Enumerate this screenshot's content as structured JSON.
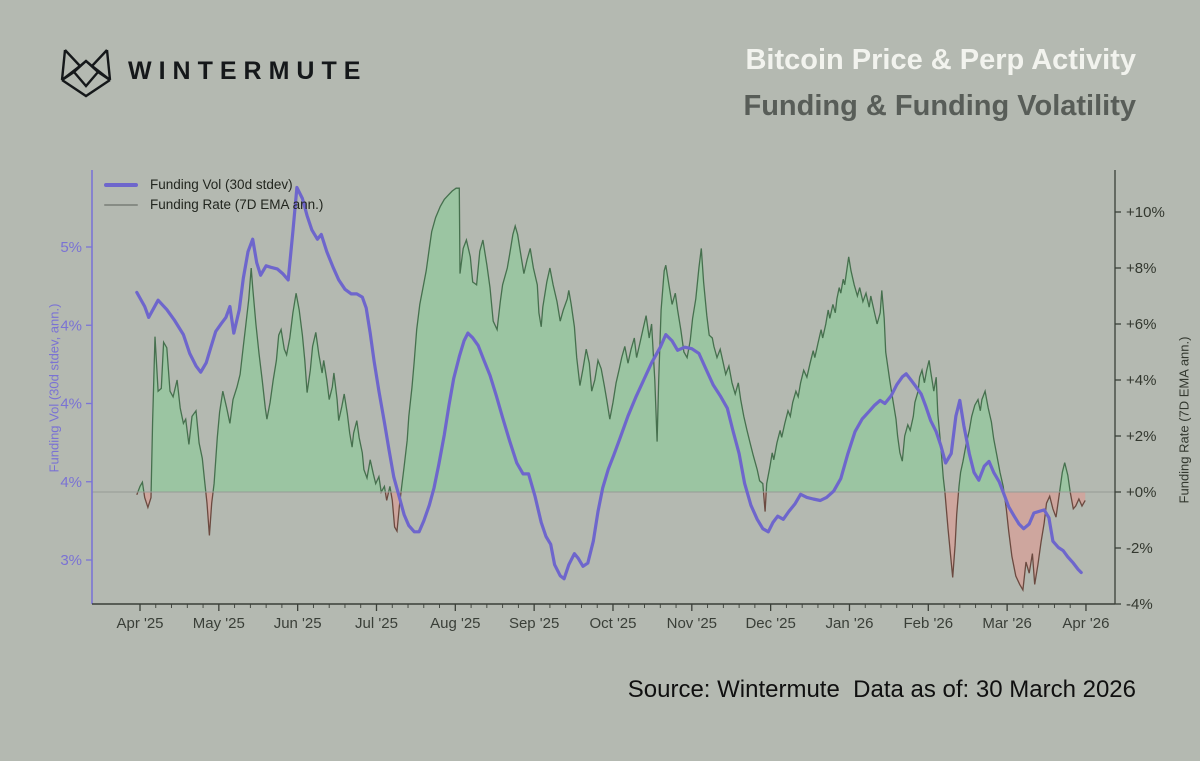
{
  "header": {
    "brand": "WINTERMUTE",
    "title": "Bitcoin Price & Perp Activity",
    "subtitle": "Funding & Funding Volatility"
  },
  "footer": {
    "text": "Source: Wintermute  Data as of: 30 March 2026"
  },
  "colors": {
    "background": "#b4b9b1",
    "title": "#f2f3ee",
    "subtitle": "#585d58",
    "vol_line": "#6e66cc",
    "rate_fill_positive": "#98c7a1",
    "rate_stroke_positive": "#46704e",
    "rate_fill_negative": "#d0a49d",
    "rate_stroke_negative": "#6b4a40",
    "left_axis": "#7a72d4",
    "dark_axis": "#3a3f38",
    "zero_line": "#969c95"
  },
  "chart_data": {
    "type": "line",
    "title": "Bitcoin Price & Perp Activity — Funding & Funding Volatility",
    "grid": false,
    "legend": {
      "position": "top-left",
      "entries": [
        "Funding Vol (30d stdev)",
        "Funding Rate (7D EMA ann.)"
      ]
    },
    "x_axis": {
      "unit": "months since Apr 2025",
      "tick_positions": [
        0,
        1,
        2,
        3,
        4,
        5,
        6,
        7,
        8,
        9,
        10,
        11,
        12
      ],
      "tick_labels": [
        "Apr '25",
        "May '25",
        "Jun '25",
        "Jul '25",
        "Aug '25",
        "Sep '25",
        "Oct '25",
        "Nov '25",
        "Dec '25",
        "Jan '26",
        "Feb '26",
        "Mar '26",
        "Apr '26"
      ]
    },
    "left_axis": {
      "label": "Funding Vol (30d stdev, ann.)",
      "tick_values": [
        5,
        4.5,
        4,
        3.5,
        3
      ],
      "tick_labels": [
        "5%",
        "4%",
        "4%",
        "4%",
        "3%"
      ],
      "ylim": [
        2.72,
        5.49
      ]
    },
    "right_axis": {
      "label": "Funding Rate (7D EMA ann.)",
      "tick_values": [
        10,
        8,
        6,
        4,
        2,
        0,
        -2,
        -4
      ],
      "tick_labels": [
        "+10%",
        "+8%",
        "+6%",
        "+4%",
        "+2%",
        "+0%",
        "-2%",
        "-4%"
      ],
      "ylim": [
        -4,
        11.5
      ]
    },
    "series": [
      {
        "name": "Funding Vol (30d stdev)",
        "axis": "left",
        "style": "line",
        "x": [
          -0.04,
          0.06,
          0.11,
          0.23,
          0.34,
          0.44,
          0.55,
          0.63,
          0.71,
          0.77,
          0.84,
          0.9,
          0.96,
          1.03,
          1.09,
          1.14,
          1.19,
          1.26,
          1.31,
          1.37,
          1.43,
          1.48,
          1.53,
          1.6,
          1.66,
          1.74,
          1.81,
          1.88,
          1.94,
          1.99,
          2.06,
          2.12,
          2.18,
          2.25,
          2.3,
          2.37,
          2.45,
          2.52,
          2.6,
          2.68,
          2.75,
          2.82,
          2.87,
          2.92,
          2.97,
          3.03,
          3.1,
          3.16,
          3.22,
          3.29,
          3.35,
          3.41,
          3.48,
          3.54,
          3.6,
          3.67,
          3.73,
          3.79,
          3.86,
          3.92,
          3.98,
          4.05,
          4.11,
          4.16,
          4.22,
          4.29,
          4.36,
          4.44,
          4.52,
          4.6,
          4.69,
          4.78,
          4.86,
          4.93,
          5.01,
          5.09,
          5.15,
          5.21,
          5.26,
          5.33,
          5.38,
          5.44,
          5.51,
          5.56,
          5.62,
          5.68,
          5.75,
          5.81,
          5.87,
          5.94,
          6.01,
          6.09,
          6.19,
          6.29,
          6.39,
          6.49,
          6.6,
          6.67,
          6.75,
          6.82,
          6.91,
          7.0,
          7.09,
          7.18,
          7.27,
          7.36,
          7.45,
          7.52,
          7.6,
          7.67,
          7.75,
          7.83,
          7.9,
          7.97,
          8.03,
          8.09,
          8.16,
          8.23,
          8.31,
          8.38,
          8.46,
          8.54,
          8.63,
          8.71,
          8.8,
          8.89,
          8.98,
          9.07,
          9.16,
          9.25,
          9.32,
          9.39,
          9.45,
          9.53,
          9.6,
          9.67,
          9.72,
          9.78,
          9.84,
          9.91,
          9.97,
          10.03,
          10.1,
          10.16,
          10.22,
          10.29,
          10.35,
          10.4,
          10.45,
          10.52,
          10.58,
          10.64,
          10.71,
          10.77,
          10.83,
          10.9,
          10.96,
          11.02,
          11.09,
          11.15,
          11.21,
          11.28,
          11.34,
          11.4,
          11.47,
          11.53,
          11.58,
          11.65,
          11.71,
          11.77,
          11.84,
          11.9,
          11.94
        ],
        "y": [
          4.71,
          4.62,
          4.55,
          4.66,
          4.6,
          4.53,
          4.44,
          4.32,
          4.24,
          4.2,
          4.26,
          4.36,
          4.46,
          4.51,
          4.55,
          4.62,
          4.45,
          4.6,
          4.8,
          4.97,
          5.05,
          4.9,
          4.82,
          4.88,
          4.87,
          4.86,
          4.83,
          4.79,
          5.1,
          5.38,
          5.31,
          5.2,
          5.11,
          5.05,
          5.08,
          4.97,
          4.87,
          4.79,
          4.73,
          4.7,
          4.7,
          4.68,
          4.61,
          4.45,
          4.27,
          4.08,
          3.88,
          3.7,
          3.53,
          3.4,
          3.29,
          3.22,
          3.18,
          3.18,
          3.25,
          3.35,
          3.46,
          3.61,
          3.8,
          3.99,
          4.16,
          4.3,
          4.4,
          4.45,
          4.42,
          4.37,
          4.28,
          4.18,
          4.05,
          3.91,
          3.76,
          3.62,
          3.55,
          3.55,
          3.41,
          3.24,
          3.15,
          3.1,
          2.97,
          2.9,
          2.88,
          2.97,
          3.04,
          3.01,
          2.96,
          2.98,
          3.12,
          3.31,
          3.46,
          3.58,
          3.67,
          3.78,
          3.92,
          4.04,
          4.15,
          4.26,
          4.36,
          4.44,
          4.4,
          4.34,
          4.36,
          4.35,
          4.32,
          4.22,
          4.12,
          4.05,
          3.97,
          3.83,
          3.68,
          3.49,
          3.35,
          3.26,
          3.2,
          3.18,
          3.24,
          3.28,
          3.26,
          3.31,
          3.36,
          3.42,
          3.4,
          3.39,
          3.38,
          3.4,
          3.44,
          3.52,
          3.68,
          3.82,
          3.9,
          3.95,
          3.99,
          4.02,
          4.0,
          4.05,
          4.12,
          4.17,
          4.19,
          4.15,
          4.11,
          4.06,
          3.98,
          3.89,
          3.82,
          3.73,
          3.62,
          3.68,
          3.92,
          4.02,
          3.86,
          3.68,
          3.56,
          3.51,
          3.6,
          3.63,
          3.56,
          3.5,
          3.42,
          3.34,
          3.28,
          3.23,
          3.2,
          3.23,
          3.3,
          3.31,
          3.32,
          3.27,
          3.12,
          3.08,
          3.06,
          3.02,
          2.98,
          2.94,
          2.92
        ]
      },
      {
        "name": "Funding Rate (7D EMA ann.)",
        "axis": "right",
        "style": "area",
        "x": [
          -0.04,
          0.0,
          0.03,
          0.06,
          0.1,
          0.14,
          0.16,
          0.19,
          0.23,
          0.27,
          0.3,
          0.34,
          0.38,
          0.42,
          0.47,
          0.51,
          0.55,
          0.58,
          0.62,
          0.66,
          0.71,
          0.75,
          0.79,
          0.82,
          0.85,
          0.88,
          0.91,
          0.94,
          0.98,
          1.01,
          1.05,
          1.1,
          1.14,
          1.18,
          1.23,
          1.27,
          1.31,
          1.34,
          1.38,
          1.41,
          1.43,
          1.47,
          1.51,
          1.55,
          1.59,
          1.61,
          1.65,
          1.69,
          1.73,
          1.76,
          1.79,
          1.83,
          1.86,
          1.9,
          1.94,
          1.98,
          2.02,
          2.06,
          2.09,
          2.12,
          2.16,
          2.19,
          2.23,
          2.27,
          2.31,
          2.33,
          2.37,
          2.4,
          2.44,
          2.46,
          2.5,
          2.52,
          2.56,
          2.59,
          2.63,
          2.66,
          2.69,
          2.71,
          2.75,
          2.78,
          2.82,
          2.84,
          2.88,
          2.92,
          2.96,
          2.99,
          3.03,
          3.06,
          3.1,
          3.13,
          3.17,
          3.2,
          3.23,
          3.26,
          3.29,
          3.32,
          3.35,
          3.39,
          3.41,
          3.45,
          3.48,
          3.51,
          3.55,
          3.59,
          3.63,
          3.67,
          3.7,
          3.75,
          3.81,
          3.86,
          3.91,
          3.96,
          4.01,
          4.05,
          4.06,
          4.1,
          4.14,
          4.19,
          4.22,
          4.27,
          4.31,
          4.35,
          4.4,
          4.44,
          4.48,
          4.53,
          4.57,
          4.6,
          4.66,
          4.69,
          4.73,
          4.76,
          4.79,
          4.83,
          4.87,
          4.91,
          4.95,
          4.99,
          5.04,
          5.06,
          5.09,
          5.11,
          5.16,
          5.2,
          5.24,
          5.29,
          5.33,
          5.37,
          5.42,
          5.44,
          5.47,
          5.51,
          5.54,
          5.58,
          5.62,
          5.66,
          5.7,
          5.73,
          5.77,
          5.81,
          5.85,
          5.89,
          5.92,
          5.96,
          6.0,
          6.04,
          6.08,
          6.11,
          6.15,
          6.19,
          6.23,
          6.27,
          6.3,
          6.34,
          6.38,
          6.42,
          6.46,
          6.49,
          6.53,
          6.56,
          6.58,
          6.61,
          6.65,
          6.67,
          6.71,
          6.75,
          6.79,
          6.82,
          6.86,
          6.9,
          6.94,
          6.98,
          7.01,
          7.05,
          7.09,
          7.12,
          7.15,
          7.19,
          7.22,
          7.26,
          7.28,
          7.32,
          7.36,
          7.4,
          7.43,
          7.47,
          7.51,
          7.55,
          7.59,
          7.62,
          7.66,
          7.7,
          7.74,
          7.78,
          7.83,
          7.86,
          7.9,
          7.93,
          7.95,
          7.99,
          8.02,
          8.04,
          8.08,
          8.12,
          8.14,
          8.18,
          8.22,
          8.25,
          8.28,
          8.32,
          8.35,
          8.38,
          8.42,
          8.46,
          8.5,
          8.54,
          8.56,
          8.6,
          8.64,
          8.66,
          8.7,
          8.73,
          8.75,
          8.79,
          8.82,
          8.84,
          8.87,
          8.89,
          8.92,
          8.94,
          8.97,
          8.99,
          9.02,
          9.06,
          9.1,
          9.13,
          9.17,
          9.21,
          9.25,
          9.27,
          9.31,
          9.35,
          9.39,
          9.41,
          9.44,
          9.46,
          9.49,
          9.51,
          9.55,
          9.59,
          9.61,
          9.64,
          9.67,
          9.7,
          9.74,
          9.77,
          9.81,
          9.83,
          9.87,
          9.89,
          9.92,
          9.95,
          9.98,
          10.01,
          10.03,
          10.07,
          10.1,
          10.12,
          10.16,
          10.19,
          10.21,
          10.25,
          10.28,
          10.31,
          10.34,
          10.36,
          10.39,
          10.41,
          10.44,
          10.48,
          10.52,
          10.55,
          10.59,
          10.63,
          10.66,
          10.68,
          10.72,
          10.76,
          10.8,
          10.83,
          10.87,
          10.91,
          10.95,
          10.99,
          11.02,
          11.06,
          11.11,
          11.16,
          11.2,
          11.24,
          11.28,
          11.32,
          11.35,
          11.39,
          11.43,
          11.47,
          11.5,
          11.54,
          11.58,
          11.62,
          11.66,
          11.7,
          11.73,
          11.77,
          11.8,
          11.84,
          11.87,
          11.91,
          11.95,
          11.99
        ],
        "y": [
          -0.1,
          0.2,
          0.35,
          -0.2,
          -0.55,
          -0.2,
          2.5,
          5.55,
          3.6,
          3.7,
          5.35,
          5.15,
          3.6,
          3.4,
          4.0,
          3.0,
          2.45,
          2.6,
          1.7,
          2.7,
          2.9,
          1.75,
          1.2,
          0.4,
          -0.4,
          -1.55,
          -0.4,
          0.3,
          1.95,
          2.85,
          3.6,
          3.0,
          2.45,
          3.3,
          3.75,
          4.2,
          5.2,
          5.9,
          6.9,
          8.0,
          7.3,
          6.0,
          4.95,
          4.0,
          3.0,
          2.6,
          3.2,
          4.0,
          4.7,
          5.6,
          5.8,
          5.1,
          4.9,
          5.5,
          6.4,
          7.1,
          6.5,
          5.6,
          4.7,
          3.55,
          4.35,
          5.2,
          5.7,
          4.9,
          4.25,
          4.7,
          4.0,
          3.3,
          3.75,
          4.25,
          3.3,
          2.55,
          3.05,
          3.5,
          2.8,
          2.1,
          1.6,
          2.1,
          2.55,
          1.95,
          1.4,
          0.8,
          0.5,
          1.15,
          0.65,
          0.3,
          0.55,
          0.0,
          0.2,
          -0.3,
          0.2,
          -0.3,
          -1.25,
          -1.4,
          -0.5,
          0.2,
          0.9,
          1.85,
          2.7,
          3.75,
          4.7,
          5.8,
          6.7,
          7.3,
          7.9,
          8.7,
          9.3,
          9.8,
          10.2,
          10.45,
          10.6,
          10.75,
          10.85,
          10.85,
          7.8,
          8.7,
          9.0,
          8.4,
          7.5,
          7.4,
          8.6,
          9.0,
          8.1,
          7.3,
          6.1,
          5.8,
          6.8,
          7.4,
          8.0,
          8.5,
          9.2,
          9.5,
          9.2,
          8.5,
          7.8,
          8.3,
          8.7,
          8.0,
          7.4,
          6.4,
          5.9,
          6.6,
          7.5,
          8.0,
          7.4,
          6.8,
          6.1,
          6.5,
          6.9,
          7.2,
          6.7,
          5.9,
          4.8,
          3.8,
          4.4,
          5.1,
          4.6,
          3.6,
          4.0,
          4.7,
          4.4,
          3.8,
          3.3,
          2.6,
          3.2,
          3.9,
          4.4,
          4.8,
          5.2,
          4.6,
          5.1,
          5.5,
          4.8,
          5.3,
          5.8,
          6.3,
          5.5,
          6.0,
          4.0,
          1.8,
          4.0,
          6.5,
          7.9,
          8.1,
          7.4,
          6.7,
          7.1,
          6.5,
          5.8,
          5.0,
          4.8,
          5.4,
          6.2,
          6.9,
          8.0,
          8.7,
          7.5,
          6.3,
          5.6,
          5.5,
          5.2,
          4.8,
          5.1,
          4.6,
          4.2,
          4.5,
          3.9,
          3.5,
          3.9,
          3.3,
          2.7,
          2.2,
          1.75,
          1.3,
          0.8,
          0.4,
          0.3,
          -0.7,
          0.3,
          0.9,
          1.4,
          1.15,
          1.75,
          2.2,
          1.95,
          2.45,
          2.9,
          2.7,
          3.2,
          3.6,
          3.4,
          3.9,
          4.35,
          4.1,
          4.6,
          5.05,
          4.8,
          5.3,
          5.8,
          5.5,
          6.0,
          6.5,
          6.2,
          6.7,
          6.4,
          6.9,
          7.3,
          7.1,
          7.6,
          7.4,
          8.0,
          8.4,
          7.9,
          7.4,
          7.0,
          7.3,
          6.8,
          7.1,
          6.6,
          7.0,
          6.5,
          6.0,
          6.4,
          7.2,
          6.2,
          5.0,
          4.4,
          4.0,
          3.3,
          2.6,
          2.0,
          1.4,
          1.1,
          2.0,
          2.4,
          2.2,
          2.7,
          3.2,
          3.6,
          4.1,
          4.35,
          3.9,
          4.35,
          4.7,
          4.3,
          3.6,
          4.1,
          2.8,
          1.6,
          0.5,
          0.0,
          -1.3,
          -2.2,
          -3.05,
          -1.9,
          -0.8,
          0.2,
          0.7,
          1.1,
          1.7,
          2.2,
          2.7,
          3.1,
          3.3,
          2.9,
          3.3,
          3.6,
          3.0,
          2.5,
          1.9,
          1.3,
          0.7,
          0.2,
          -0.6,
          -1.4,
          -2.3,
          -3.0,
          -3.3,
          -3.5,
          -2.5,
          -2.9,
          -2.2,
          -3.3,
          -2.6,
          -1.8,
          -1.1,
          -0.4,
          -0.15,
          -0.6,
          -0.9,
          -0.1,
          0.7,
          1.05,
          0.6,
          0.0,
          -0.6,
          -0.5,
          -0.25,
          -0.5,
          -0.3
        ]
      }
    ]
  }
}
